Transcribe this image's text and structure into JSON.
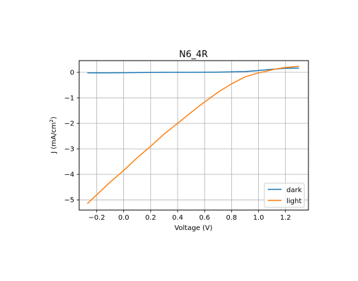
{
  "chart_data": {
    "type": "line",
    "title": "N6_4R",
    "xlabel": "Voltage (V)",
    "ylabel_main": "J (mA/cm",
    "ylabel_sup": "2",
    "ylabel_close": ")",
    "xlim": [
      -0.33,
      1.37
    ],
    "ylim": [
      -5.4,
      0.46
    ],
    "xticks": [
      -0.2,
      0.0,
      0.2,
      0.4,
      0.6,
      0.8,
      1.0,
      1.2
    ],
    "xtick_labels": [
      "−0.2",
      "0.0",
      "0.2",
      "0.4",
      "0.6",
      "0.8",
      "1.0",
      "1.2"
    ],
    "yticks": [
      0,
      -1,
      -2,
      -3,
      -4,
      -5
    ],
    "ytick_labels": [
      "0",
      "−1",
      "−2",
      "−3",
      "−4",
      "−5"
    ],
    "grid": true,
    "legend_position": "lower-right",
    "series": [
      {
        "name": "dark",
        "color": "#1f77b4",
        "x": [
          -0.27,
          -0.1,
          0.1,
          0.3,
          0.5,
          0.7,
          0.9,
          1.0,
          1.1,
          1.2,
          1.3
        ],
        "y": [
          -0.02,
          -0.02,
          -0.01,
          0.0,
          0.0,
          0.01,
          0.03,
          0.07,
          0.12,
          0.16,
          0.17
        ]
      },
      {
        "name": "light",
        "color": "#ff7f0e",
        "x": [
          -0.27,
          -0.2,
          -0.1,
          0.0,
          0.1,
          0.2,
          0.3,
          0.4,
          0.5,
          0.6,
          0.7,
          0.8,
          0.9,
          1.0,
          1.05,
          1.1,
          1.15,
          1.2,
          1.3
        ],
        "y": [
          -5.15,
          -4.8,
          -4.3,
          -3.85,
          -3.35,
          -2.9,
          -2.42,
          -2.0,
          -1.57,
          -1.16,
          -0.78,
          -0.45,
          -0.18,
          -0.02,
          0.03,
          0.1,
          0.15,
          0.19,
          0.24
        ]
      }
    ]
  }
}
